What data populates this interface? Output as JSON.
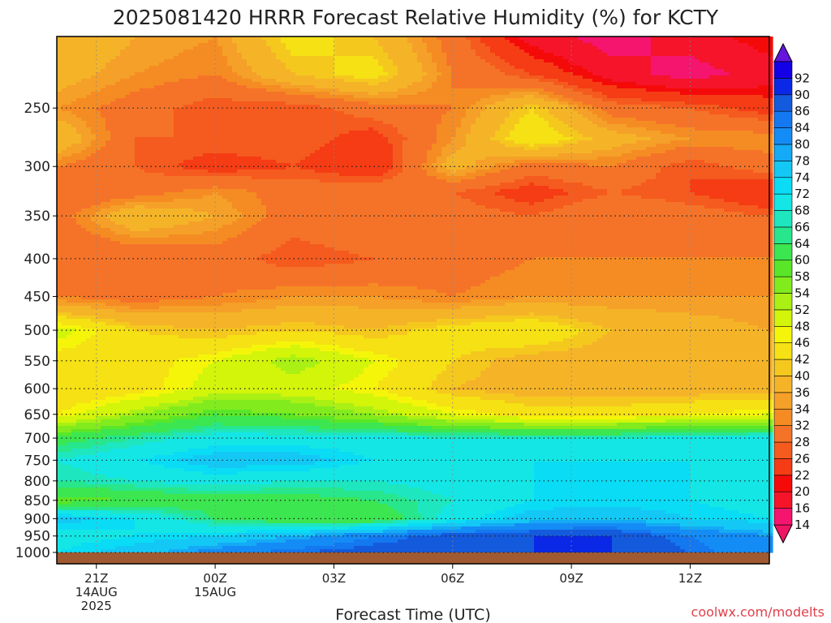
{
  "chart_data": {
    "type": "heatmap",
    "title": "2025081420 HRRR Forecast Relative Humidity (%) for KCTY",
    "xlabel": "Forecast Time (UTC)",
    "ylabel": "",
    "credit": "coolwx.com/modelts",
    "x_ticks": [
      {
        "hour": 1,
        "label": "21Z",
        "sub1": "14AUG",
        "sub2": "2025"
      },
      {
        "hour": 4,
        "label": "00Z",
        "sub1": "15AUG",
        "sub2": ""
      },
      {
        "hour": 7,
        "label": "03Z",
        "sub1": "",
        "sub2": ""
      },
      {
        "hour": 10,
        "label": "06Z",
        "sub1": "",
        "sub2": ""
      },
      {
        "hour": 13,
        "label": "09Z",
        "sub1": "",
        "sub2": ""
      },
      {
        "hour": 16,
        "label": "12Z",
        "sub1": "",
        "sub2": ""
      }
    ],
    "x_hours": [
      0,
      18
    ],
    "y_ticks": [
      {
        "value": 250,
        "label": "250"
      },
      {
        "value": 300,
        "label": "300"
      },
      {
        "value": 350,
        "label": "350"
      },
      {
        "value": 400,
        "label": "400"
      },
      {
        "value": 450,
        "label": "450"
      },
      {
        "value": 500,
        "label": "500"
      },
      {
        "value": 550,
        "label": "550"
      },
      {
        "value": 600,
        "label": "600"
      },
      {
        "value": 650,
        "label": "650"
      },
      {
        "value": 700,
        "label": "700"
      },
      {
        "value": 750,
        "label": "750"
      },
      {
        "value": 800,
        "label": "800"
      },
      {
        "value": 850,
        "label": "850"
      },
      {
        "value": 900,
        "label": "900"
      },
      {
        "value": 950,
        "label": "950"
      },
      {
        "value": 1000,
        "label": "1000"
      }
    ],
    "y_range": [
      200,
      1000
    ],
    "y_scale": "log",
    "grid": true,
    "colorbar": {
      "levels": [
        {
          "label": "14",
          "color": "#f5146e"
        },
        {
          "label": "16",
          "color": "#f5142a"
        },
        {
          "label": "20",
          "color": "#f50a0a"
        },
        {
          "label": "22",
          "color": "#f53c14"
        },
        {
          "label": "26",
          "color": "#f55a1e"
        },
        {
          "label": "28",
          "color": "#f57328"
        },
        {
          "label": "32",
          "color": "#f58c23"
        },
        {
          "label": "34",
          "color": "#f5a028"
        },
        {
          "label": "36",
          "color": "#f5b428"
        },
        {
          "label": "40",
          "color": "#f5c81e"
        },
        {
          "label": "42",
          "color": "#f5e114"
        },
        {
          "label": "46",
          "color": "#f5f50a"
        },
        {
          "label": "48",
          "color": "#d2f50a"
        },
        {
          "label": "52",
          "color": "#aaf014"
        },
        {
          "label": "54",
          "color": "#82eb1e"
        },
        {
          "label": "58",
          "color": "#5ae628"
        },
        {
          "label": "60",
          "color": "#3ce650"
        },
        {
          "label": "64",
          "color": "#28e68c"
        },
        {
          "label": "66",
          "color": "#1ee6be"
        },
        {
          "label": "68",
          "color": "#14e6e6"
        },
        {
          "label": "72",
          "color": "#0adcf5"
        },
        {
          "label": "74",
          "color": "#14c8f5"
        },
        {
          "label": "78",
          "color": "#14aaf5"
        },
        {
          "label": "80",
          "color": "#148cf5"
        },
        {
          "label": "84",
          "color": "#1478f0"
        },
        {
          "label": "86",
          "color": "#145adc"
        },
        {
          "label": "90",
          "color": "#0a28e6"
        },
        {
          "label": "92",
          "color": "#1400e6"
        }
      ],
      "over_color": "#6414dc",
      "under_color": "#f01464"
    },
    "ground_color": "#a05a32",
    "rh_grid": {
      "hours": [
        0,
        2,
        4,
        6,
        8,
        10,
        12,
        14,
        16,
        18
      ],
      "levels": [
        200,
        225,
        250,
        275,
        300,
        325,
        350,
        400,
        450,
        500,
        550,
        600,
        650,
        700,
        750,
        800,
        850,
        900,
        950,
        1000
      ],
      "values": [
        [
          40,
          36,
          34,
          44,
          40,
          30,
          18,
          14,
          18,
          22
        ],
        [
          38,
          34,
          32,
          40,
          44,
          32,
          26,
          18,
          14,
          18
        ],
        [
          34,
          30,
          26,
          26,
          30,
          32,
          42,
          30,
          28,
          24
        ],
        [
          40,
          28,
          28,
          28,
          24,
          34,
          46,
          38,
          34,
          34
        ],
        [
          32,
          28,
          24,
          26,
          22,
          38,
          30,
          32,
          26,
          30
        ],
        [
          28,
          30,
          34,
          30,
          32,
          28,
          24,
          28,
          26,
          22
        ],
        [
          30,
          40,
          36,
          30,
          32,
          30,
          28,
          32,
          30,
          28
        ],
        [
          28,
          28,
          30,
          26,
          28,
          30,
          32,
          32,
          32,
          32
        ],
        [
          32,
          30,
          32,
          34,
          34,
          32,
          34,
          34,
          34,
          34
        ],
        [
          50,
          42,
          40,
          42,
          40,
          44,
          46,
          40,
          38,
          36
        ],
        [
          44,
          44,
          48,
          54,
          48,
          42,
          38,
          38,
          38,
          38
        ],
        [
          42,
          44,
          50,
          50,
          46,
          40,
          38,
          38,
          38,
          38
        ],
        [
          46,
          54,
          60,
          58,
          54,
          48,
          44,
          44,
          46,
          48
        ],
        [
          62,
          66,
          70,
          70,
          70,
          68,
          68,
          68,
          70,
          70
        ],
        [
          68,
          72,
          76,
          76,
          72,
          72,
          72,
          72,
          72,
          72
        ],
        [
          66,
          68,
          70,
          68,
          68,
          70,
          72,
          72,
          72,
          70
        ],
        [
          58,
          60,
          62,
          62,
          64,
          68,
          72,
          72,
          72,
          70
        ],
        [
          76,
          72,
          64,
          60,
          60,
          70,
          76,
          78,
          74,
          72
        ],
        [
          70,
          72,
          74,
          78,
          84,
          88,
          90,
          90,
          84,
          80
        ],
        [
          72,
          76,
          82,
          86,
          88,
          88,
          90,
          90,
          86,
          80
        ]
      ]
    }
  }
}
